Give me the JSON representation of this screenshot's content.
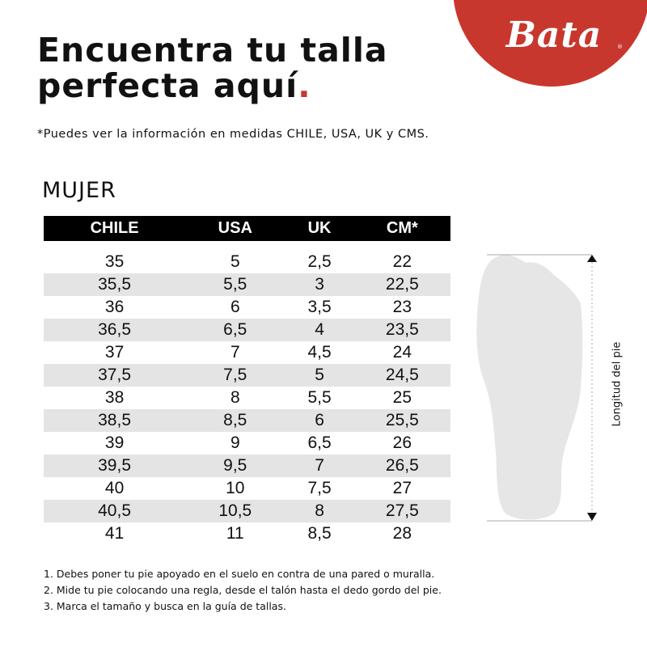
{
  "brand": {
    "name": "Bata",
    "color": "#c8372d"
  },
  "title": {
    "line1": "Encuentra tu talla",
    "line2": "perfecta aquí",
    "dot": "."
  },
  "subtitle": "*Puedes ver la información en medidas CHILE, USA, UK y CMS.",
  "section": "MUJER",
  "table": {
    "headers": [
      "CHILE",
      "USA",
      "UK",
      "CM*"
    ],
    "rows": [
      [
        "35",
        "5",
        "2,5",
        "22"
      ],
      [
        "35,5",
        "5,5",
        "3",
        "22,5"
      ],
      [
        "36",
        "6",
        "3,5",
        "23"
      ],
      [
        "36,5",
        "6,5",
        "4",
        "23,5"
      ],
      [
        "37",
        "7",
        "4,5",
        "24"
      ],
      [
        "37,5",
        "7,5",
        "5",
        "24,5"
      ],
      [
        "38",
        "8",
        "5,5",
        "25"
      ],
      [
        "38,5",
        "8,5",
        "6",
        "25,5"
      ],
      [
        "39",
        "9",
        "6,5",
        "26"
      ],
      [
        "39,5",
        "9,5",
        "7",
        "26,5"
      ],
      [
        "40",
        "10",
        "7,5",
        "27"
      ],
      [
        "40,5",
        "10,5",
        "8",
        "27,5"
      ],
      [
        "41",
        "11",
        "8,5",
        "28"
      ]
    ]
  },
  "diagram": {
    "label": "Longitud del pie",
    "icon": "foot-outline-icon"
  },
  "steps": [
    "1. Debes poner tu pie apoyado en el suelo en contra de una pared o muralla.",
    "2. Mide tu pie colocando una regla, desde el talón hasta el dedo gordo del pie.",
    "3. Marca el tamaño y busca en la guía de tallas."
  ]
}
